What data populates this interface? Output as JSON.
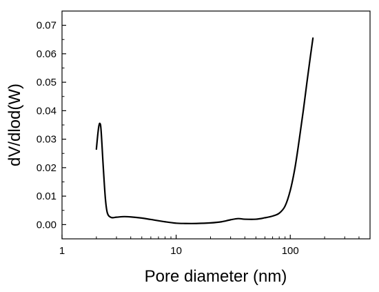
{
  "chart_data": {
    "type": "line",
    "title": "",
    "xlabel": "Pore diameter (nm)",
    "ylabel": "dV/dlod(W)",
    "x_scale": "log",
    "xlim": [
      1,
      500
    ],
    "ylim": [
      -0.005,
      0.075
    ],
    "x_ticks": [
      1,
      10,
      100
    ],
    "x_tick_labels": [
      "1",
      "10",
      "100"
    ],
    "y_ticks": [
      0,
      0.01,
      0.02,
      0.03,
      0.04,
      0.05,
      0.06,
      0.07
    ],
    "y_tick_labels": [
      "0.00",
      "0.01",
      "0.02",
      "0.03",
      "0.04",
      "0.05",
      "0.06",
      "0.07"
    ],
    "grid": false,
    "series": [
      {
        "color": "#000000",
        "x": [
          2.0,
          2.05,
          2.1,
          2.15,
          2.2,
          2.3,
          2.4,
          2.5,
          2.7,
          3.0,
          3.5,
          4.0,
          5.0,
          6.0,
          8.0,
          10.0,
          12.0,
          15.0,
          20.0,
          25.0,
          30.0,
          35.0,
          40.0,
          50.0,
          60.0,
          70.0,
          80.0,
          90.0,
          100.0,
          110.0,
          120.0,
          130.0,
          140.0,
          150.0,
          158.0
        ],
        "y": [
          0.0265,
          0.031,
          0.0345,
          0.0355,
          0.033,
          0.02,
          0.009,
          0.004,
          0.0025,
          0.0026,
          0.0028,
          0.0027,
          0.0023,
          0.0018,
          0.001,
          0.0005,
          0.0004,
          0.0004,
          0.0006,
          0.001,
          0.0017,
          0.0021,
          0.0019,
          0.0019,
          0.0024,
          0.003,
          0.004,
          0.0065,
          0.012,
          0.02,
          0.03,
          0.04,
          0.05,
          0.059,
          0.0655
        ]
      }
    ]
  }
}
